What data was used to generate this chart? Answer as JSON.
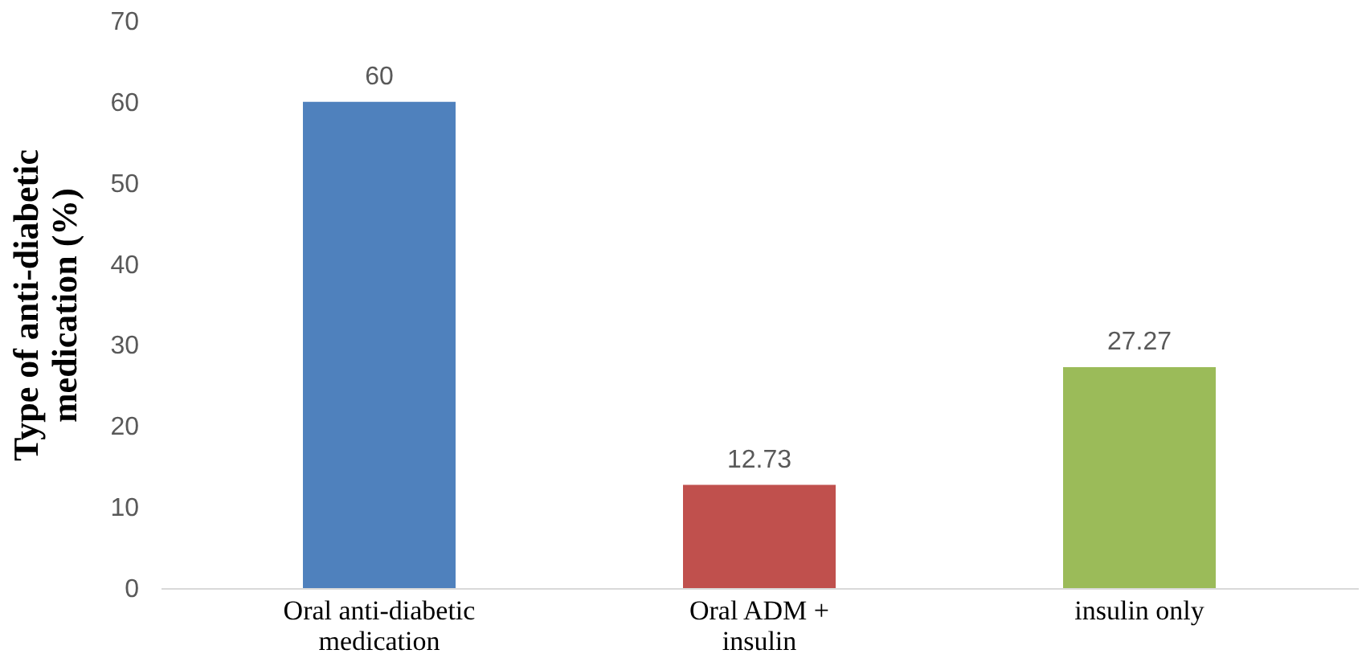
{
  "chart_data": {
    "type": "bar",
    "ylabel": "Type of anti-diabetic medication (%)",
    "categories": [
      "Oral anti-diabetic medication",
      "Oral ADM + insulin",
      "insulin only"
    ],
    "values": [
      60,
      12.73,
      27.27
    ],
    "colors": [
      "#4f81bd",
      "#c0504d",
      "#9bbb59"
    ],
    "ylim": [
      0,
      70
    ],
    "yticks": [
      0,
      10,
      20,
      30,
      40,
      50,
      60,
      70
    ],
    "data_labels": true,
    "grid": false
  }
}
